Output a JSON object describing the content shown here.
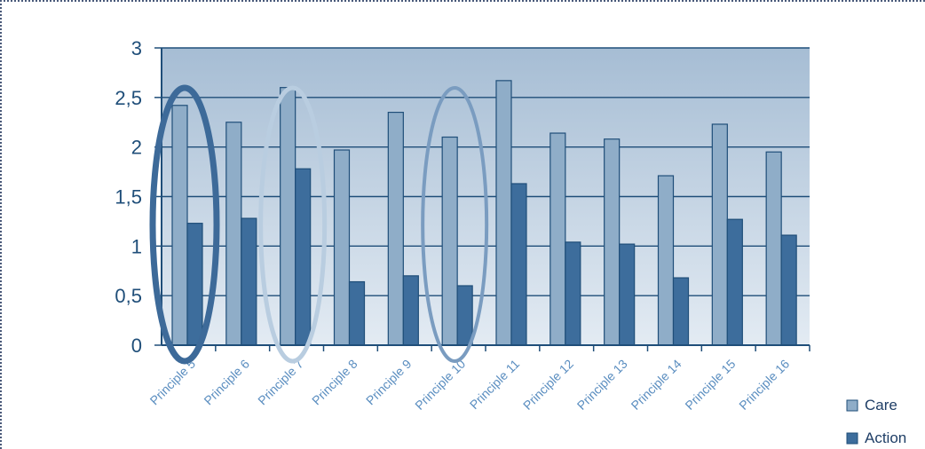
{
  "chart_data": {
    "type": "bar",
    "categories": [
      "Principle 5",
      "Principle 6",
      "Principle 7",
      "Principle 8",
      "Principle 9",
      "Principle 10",
      "Principle 11",
      "Principle 12",
      "Principle 13",
      "Principle 14",
      "Principle 15",
      "Principle 16"
    ],
    "series": [
      {
        "name": "Care",
        "values": [
          2.42,
          2.25,
          2.6,
          1.97,
          2.35,
          2.1,
          2.67,
          2.14,
          2.08,
          1.71,
          2.23,
          1.95
        ]
      },
      {
        "name": "Action",
        "values": [
          1.23,
          1.28,
          1.78,
          0.64,
          0.7,
          0.6,
          1.63,
          1.04,
          1.02,
          0.68,
          1.27,
          1.11
        ]
      }
    ],
    "yticks": [
      "0",
      "0,5",
      "1",
      "1,5",
      "2",
      "2,5",
      "3"
    ],
    "ylim": [
      0,
      3
    ],
    "grid": true,
    "legend": "bottom-right",
    "highlighted_categories": [
      "Principle 5",
      "Principle 7",
      "Principle 10"
    ],
    "colors": {
      "care": "#8fadc8",
      "action": "#3d6d9c",
      "bar_stroke": "#1f4e79",
      "plot_top": "#a6bdd4",
      "plot_bottom": "#e3ebf3",
      "grid": "#1f4e79"
    }
  }
}
